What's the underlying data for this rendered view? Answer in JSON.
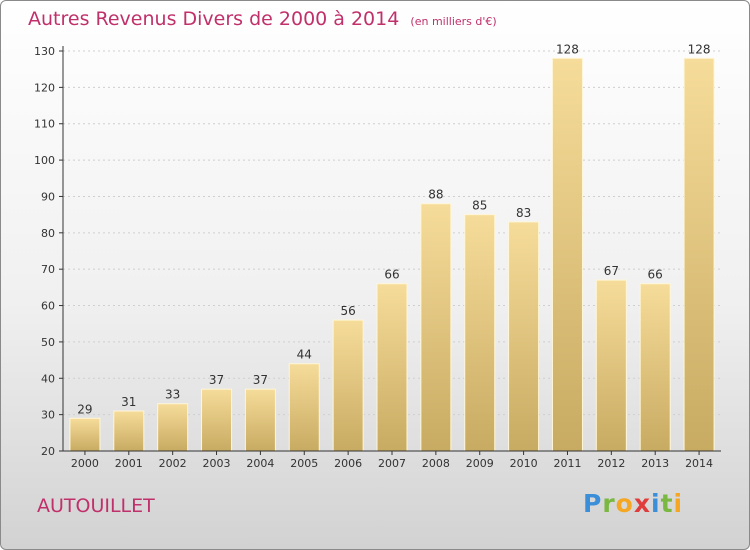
{
  "title": "Autres Revenus Divers de 2000 à 2014",
  "subtitle": "(en milliers d'€)",
  "place": "AUTOUILLET",
  "brand": {
    "name": "Proxiti",
    "letters": [
      {
        "ch": "P",
        "color": "#3b8fd8"
      },
      {
        "ch": "r",
        "color": "#7ab842"
      },
      {
        "ch": "o",
        "color": "#f5a623"
      },
      {
        "ch": "x",
        "color": "#e03c3c"
      },
      {
        "ch": "i",
        "color": "#3b8fd8"
      },
      {
        "ch": "t",
        "color": "#7ab842"
      },
      {
        "ch": "i",
        "color": "#f5a623"
      }
    ]
  },
  "colors": {
    "title": "#c0306a",
    "bar_top": "#f6dc9a",
    "bar_bottom": "#c8ab62",
    "axis": "#333333",
    "text": "#333333",
    "grid": "#cfcfcf"
  },
  "chart_data": {
    "type": "bar",
    "categories": [
      "2000",
      "2001",
      "2002",
      "2003",
      "2004",
      "2005",
      "2006",
      "2007",
      "2008",
      "2009",
      "2010",
      "2011",
      "2012",
      "2013",
      "2014"
    ],
    "values": [
      29,
      31,
      33,
      37,
      37,
      44,
      56,
      66,
      88,
      85,
      83,
      128,
      67,
      66,
      128
    ],
    "data_labels": [
      "29",
      "31",
      "33",
      "37",
      "37",
      "44",
      "56",
      "66",
      "88",
      "85",
      "83",
      "128",
      "67",
      "66",
      "128"
    ],
    "ylim": [
      20,
      130
    ],
    "yticks": [
      20,
      30,
      40,
      50,
      60,
      70,
      80,
      90,
      100,
      110,
      120,
      130
    ],
    "grid": true
  }
}
